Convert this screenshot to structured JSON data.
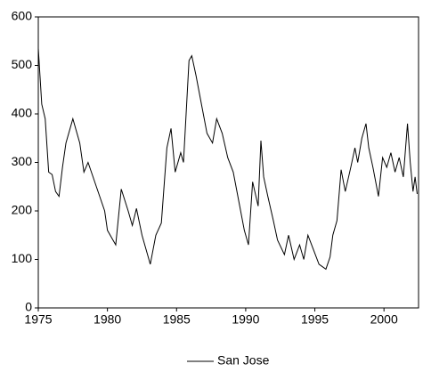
{
  "chart_data": {
    "type": "line",
    "x": [
      1975.0,
      1975.25,
      1975.5,
      1975.75,
      1976.0,
      1976.25,
      1976.5,
      1976.75,
      1977.0,
      1977.5,
      1978.0,
      1978.3,
      1978.6,
      1979.2,
      1979.8,
      1980.0,
      1980.6,
      1981.0,
      1981.5,
      1981.8,
      1982.1,
      1982.5,
      1982.8,
      1983.1,
      1983.5,
      1983.9,
      1984.3,
      1984.6,
      1984.9,
      1985.3,
      1985.5,
      1985.9,
      1986.1,
      1986.4,
      1986.8,
      1987.2,
      1987.6,
      1987.9,
      1988.3,
      1988.7,
      1989.1,
      1989.5,
      1989.9,
      1990.2,
      1990.5,
      1990.9,
      1991.1,
      1991.3,
      1991.6,
      1992.0,
      1992.3,
      1992.8,
      1993.1,
      1993.5,
      1993.9,
      1994.2,
      1994.5,
      1994.9,
      1995.3,
      1995.8,
      1996.1,
      1996.3,
      1996.6,
      1996.9,
      1997.2,
      1997.6,
      1997.9,
      1998.1,
      1998.4,
      1998.7,
      1998.9,
      1999.2,
      1999.6,
      1999.9,
      2000.2,
      2000.5,
      2000.8,
      2001.1,
      2001.4,
      2001.7,
      2001.9,
      2002.1,
      2002.25,
      2002.4
    ],
    "series": [
      {
        "name": "San Jose",
        "color": "#000000",
        "values": [
          535,
          420,
          390,
          280,
          275,
          240,
          230,
          290,
          340,
          390,
          340,
          280,
          300,
          250,
          200,
          160,
          130,
          245,
          200,
          170,
          205,
          150,
          120,
          90,
          150,
          175,
          330,
          370,
          280,
          320,
          300,
          510,
          520,
          480,
          420,
          360,
          340,
          390,
          360,
          310,
          280,
          220,
          160,
          130,
          260,
          210,
          345,
          270,
          230,
          180,
          140,
          110,
          150,
          100,
          130,
          100,
          150,
          120,
          90,
          80,
          105,
          150,
          180,
          285,
          240,
          290,
          330,
          300,
          350,
          380,
          330,
          290,
          230,
          310,
          290,
          320,
          280,
          310,
          270,
          380,
          300,
          240,
          270,
          235
        ]
      }
    ],
    "xlim": [
      1975,
      2002.5
    ],
    "ylim": [
      0,
      600
    ],
    "xticks": [
      1975,
      1980,
      1985,
      1990,
      1995,
      2000
    ],
    "yticks": [
      0,
      100,
      200,
      300,
      400,
      500,
      600
    ]
  }
}
